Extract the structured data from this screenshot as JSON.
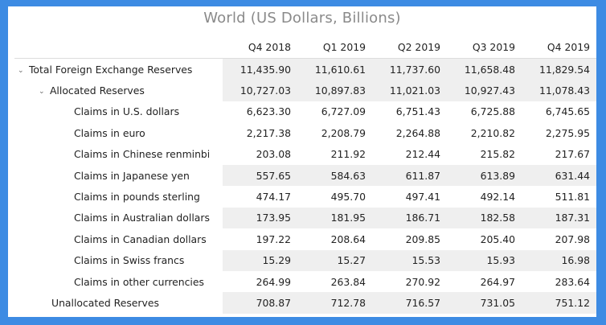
{
  "title": "World (US Dollars, Billions)",
  "columns": [
    "Q4 2018",
    "Q1 2019",
    "Q2 2019",
    "Q3 2019",
    "Q4 2019"
  ],
  "rows": [
    {
      "label": "Total Foreign Exchange Reserves",
      "values": [
        "11,435.90",
        "11,610.61",
        "11,737.60",
        "11,658.48",
        "11,829.54"
      ]
    },
    {
      "label": "Allocated Reserves",
      "values": [
        "10,727.03",
        "10,897.83",
        "11,021.03",
        "10,927.43",
        "11,078.43"
      ]
    },
    {
      "label": "Claims in U.S. dollars",
      "values": [
        "6,623.30",
        "6,727.09",
        "6,751.43",
        "6,725.88",
        "6,745.65"
      ]
    },
    {
      "label": "Claims in euro",
      "values": [
        "2,217.38",
        "2,208.79",
        "2,264.88",
        "2,210.82",
        "2,275.95"
      ]
    },
    {
      "label": "Claims in Chinese renminbi",
      "values": [
        "203.08",
        "211.92",
        "212.44",
        "215.82",
        "217.67"
      ]
    },
    {
      "label": "Claims in Japanese yen",
      "values": [
        "557.65",
        "584.63",
        "611.87",
        "613.89",
        "631.44"
      ]
    },
    {
      "label": "Claims in pounds sterling",
      "values": [
        "474.17",
        "495.70",
        "497.41",
        "492.14",
        "511.81"
      ]
    },
    {
      "label": "Claims in Australian dollars",
      "values": [
        "173.95",
        "181.95",
        "186.71",
        "182.58",
        "187.31"
      ]
    },
    {
      "label": "Claims in Canadian dollars",
      "values": [
        "197.22",
        "208.64",
        "209.85",
        "205.40",
        "207.98"
      ]
    },
    {
      "label": "Claims in Swiss francs",
      "values": [
        "15.29",
        "15.27",
        "15.53",
        "15.93",
        "16.98"
      ]
    },
    {
      "label": "Claims in other currencies",
      "values": [
        "264.99",
        "263.84",
        "270.92",
        "264.97",
        "283.64"
      ]
    },
    {
      "label": "Unallocated Reserves",
      "values": [
        "708.87",
        "712.78",
        "716.57",
        "731.05",
        "751.12"
      ]
    }
  ]
}
